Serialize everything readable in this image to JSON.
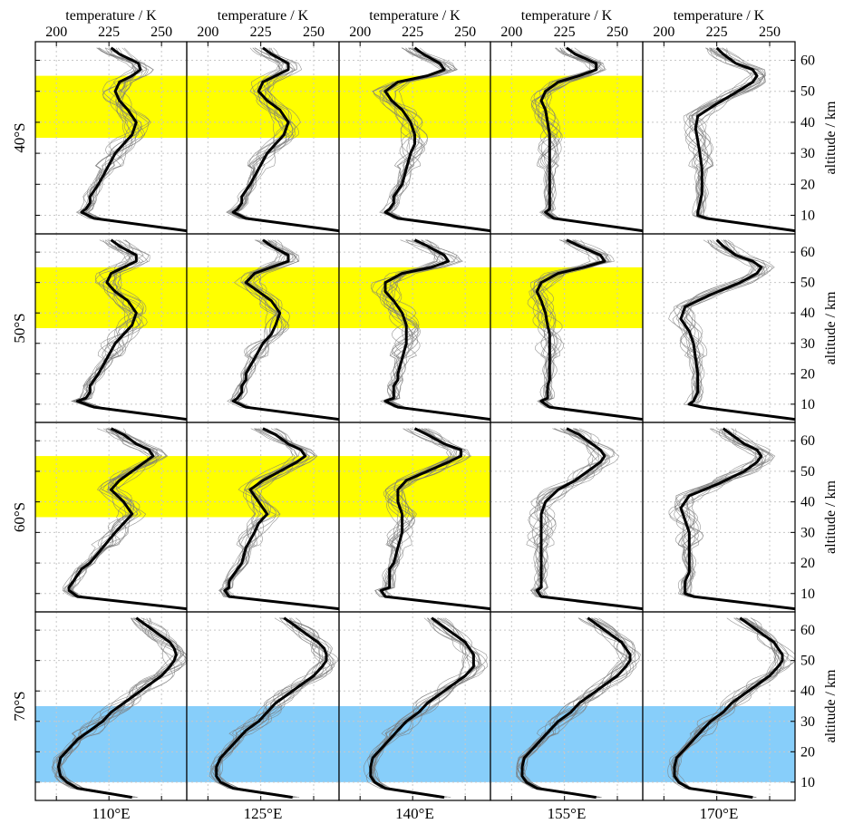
{
  "chart_data": {
    "type": "line",
    "columns": [
      {
        "top_label": "temperature / K",
        "bottom_label": "110°E"
      },
      {
        "top_label": "temperature / K",
        "bottom_label": "125°E"
      },
      {
        "top_label": "temperature / K",
        "bottom_label": "140°E"
      },
      {
        "top_label": "temperature / K",
        "bottom_label": "155°E"
      },
      {
        "top_label": "temperature / K",
        "bottom_label": "170°E"
      }
    ],
    "rows": [
      {
        "label": "40°S",
        "right_axis_label": "altitude / km"
      },
      {
        "label": "50°S",
        "right_axis_label": "altitude / km"
      },
      {
        "label": "60°S",
        "right_axis_label": "altitude / km"
      },
      {
        "label": "70°S",
        "right_axis_label": "altitude / km"
      }
    ],
    "xticks": [
      "200",
      "225",
      "250"
    ],
    "xtick_values": [
      200,
      225,
      250
    ],
    "xlim": [
      190,
      262
    ],
    "yticks": [
      "10",
      "20",
      "30",
      "40",
      "50",
      "60"
    ],
    "ytick_values": [
      10,
      20,
      30,
      40,
      50,
      60
    ],
    "ylim": [
      4,
      66
    ],
    "grid": true,
    "highlight_colors": {
      "yellow": "#ffff00",
      "blue": "#87cefa"
    },
    "highlights": [
      {
        "row": 0,
        "col": 0,
        "color": "yellow",
        "alt_range": [
          35,
          55
        ]
      },
      {
        "row": 0,
        "col": 1,
        "color": "yellow",
        "alt_range": [
          35,
          55
        ]
      },
      {
        "row": 0,
        "col": 2,
        "color": "yellow",
        "alt_range": [
          35,
          55
        ]
      },
      {
        "row": 0,
        "col": 3,
        "color": "yellow",
        "alt_range": [
          35,
          55
        ]
      },
      {
        "row": 1,
        "col": 0,
        "color": "yellow",
        "alt_range": [
          35,
          55
        ]
      },
      {
        "row": 1,
        "col": 1,
        "color": "yellow",
        "alt_range": [
          35,
          55
        ]
      },
      {
        "row": 1,
        "col": 2,
        "color": "yellow",
        "alt_range": [
          35,
          55
        ]
      },
      {
        "row": 1,
        "col": 3,
        "color": "yellow",
        "alt_range": [
          35,
          55
        ]
      },
      {
        "row": 2,
        "col": 0,
        "color": "yellow",
        "alt_range": [
          35,
          55
        ]
      },
      {
        "row": 2,
        "col": 1,
        "color": "yellow",
        "alt_range": [
          35,
          55
        ]
      },
      {
        "row": 2,
        "col": 2,
        "color": "yellow",
        "alt_range": [
          35,
          55
        ]
      },
      {
        "row": 3,
        "col": 0,
        "color": "blue",
        "alt_range": [
          10,
          35
        ]
      },
      {
        "row": 3,
        "col": 1,
        "color": "blue",
        "alt_range": [
          10,
          35
        ]
      },
      {
        "row": 3,
        "col": 2,
        "color": "blue",
        "alt_range": [
          10,
          35
        ]
      },
      {
        "row": 3,
        "col": 3,
        "color": "blue",
        "alt_range": [
          10,
          35
        ]
      },
      {
        "row": 3,
        "col": 4,
        "color": "blue",
        "alt_range": [
          10,
          35
        ]
      }
    ],
    "mean_profiles": [
      [
        {
          "alt": [
            5,
            9,
            11,
            12,
            14,
            16,
            18,
            20,
            25,
            30,
            33,
            36,
            40,
            44,
            47,
            50,
            53,
            55,
            57,
            59,
            62,
            64
          ],
          "temp": [
            262,
            218,
            212,
            214,
            216,
            216,
            218,
            220,
            224,
            228,
            232,
            236,
            238,
            234,
            230,
            228,
            230,
            236,
            240,
            239,
            230,
            226
          ]
        },
        {
          "alt": [
            5,
            9,
            11,
            12,
            14,
            16,
            18,
            20,
            25,
            30,
            33,
            36,
            40,
            44,
            47,
            50,
            53,
            55,
            57,
            59,
            62,
            64
          ],
          "temp": [
            262,
            218,
            212,
            214,
            216,
            216,
            218,
            220,
            224,
            228,
            232,
            236,
            238,
            234,
            228,
            224,
            226,
            232,
            238,
            238,
            230,
            226
          ]
        },
        {
          "alt": [
            5,
            9,
            11,
            12,
            14,
            16,
            18,
            20,
            25,
            30,
            33,
            36,
            40,
            44,
            47,
            50,
            53,
            55,
            57,
            59,
            62,
            64
          ],
          "temp": [
            262,
            218,
            212,
            214,
            216,
            216,
            218,
            220,
            222,
            224,
            226,
            226,
            224,
            220,
            215,
            212,
            218,
            232,
            240,
            238,
            230,
            226
          ]
        },
        {
          "alt": [
            5,
            9,
            11,
            12,
            14,
            16,
            18,
            20,
            25,
            30,
            33,
            36,
            40,
            44,
            47,
            50,
            53,
            55,
            57,
            59,
            62,
            64
          ],
          "temp": [
            262,
            220,
            216,
            218,
            218,
            218,
            218,
            218,
            218,
            218,
            218,
            218,
            217,
            216,
            214,
            216,
            222,
            232,
            240,
            240,
            230,
            226
          ]
        },
        {
          "alt": [
            5,
            9,
            10,
            11,
            14,
            17,
            20,
            25,
            30,
            34,
            38,
            42,
            46,
            50,
            53,
            55,
            57,
            59,
            62,
            64
          ],
          "temp": [
            262,
            220,
            216,
            216,
            217,
            218,
            218,
            218,
            217,
            216,
            215,
            216,
            225,
            235,
            242,
            244,
            242,
            234,
            228,
            225
          ]
        }
      ],
      [
        {
          "alt": [
            5,
            9,
            11,
            12,
            14,
            16,
            18,
            20,
            25,
            30,
            33,
            36,
            40,
            44,
            47,
            50,
            53,
            55,
            57,
            59,
            62,
            64
          ],
          "temp": [
            262,
            218,
            210,
            214,
            216,
            216,
            218,
            220,
            224,
            228,
            232,
            236,
            238,
            234,
            228,
            224,
            226,
            232,
            238,
            238,
            230,
            226
          ]
        },
        {
          "alt": [
            5,
            9,
            11,
            12,
            14,
            16,
            18,
            20,
            25,
            30,
            33,
            36,
            40,
            44,
            47,
            50,
            53,
            55,
            57,
            59,
            62,
            64
          ],
          "temp": [
            262,
            218,
            212,
            214,
            216,
            216,
            218,
            218,
            222,
            226,
            230,
            232,
            234,
            230,
            224,
            218,
            222,
            230,
            238,
            238,
            230,
            226
          ]
        },
        {
          "alt": [
            5,
            9,
            11,
            12,
            14,
            16,
            18,
            20,
            25,
            30,
            33,
            36,
            40,
            44,
            47,
            50,
            53,
            55,
            57,
            59,
            62,
            64
          ],
          "temp": [
            262,
            218,
            212,
            216,
            216,
            216,
            218,
            218,
            220,
            222,
            222,
            222,
            220,
            216,
            212,
            212,
            220,
            234,
            242,
            240,
            232,
            226
          ]
        },
        {
          "alt": [
            5,
            9,
            11,
            12,
            14,
            16,
            18,
            20,
            25,
            30,
            33,
            36,
            40,
            44,
            47,
            50,
            53,
            55,
            57,
            59,
            62,
            64
          ],
          "temp": [
            262,
            218,
            214,
            217,
            217,
            217,
            218,
            218,
            218,
            218,
            218,
            217,
            216,
            214,
            212,
            214,
            222,
            234,
            244,
            242,
            232,
            226
          ]
        },
        {
          "alt": [
            5,
            9,
            10,
            11,
            14,
            17,
            20,
            25,
            30,
            34,
            38,
            42,
            46,
            50,
            53,
            55,
            57,
            59,
            62,
            64
          ],
          "temp": [
            262,
            218,
            212,
            214,
            216,
            216,
            216,
            215,
            214,
            212,
            208,
            210,
            222,
            236,
            244,
            246,
            242,
            234,
            228,
            225
          ]
        }
      ],
      [
        {
          "alt": [
            5,
            9,
            11,
            12,
            14,
            16,
            18,
            20,
            25,
            30,
            33,
            36,
            40,
            44,
            47,
            50,
            53,
            55,
            57,
            59,
            62,
            64
          ],
          "temp": [
            262,
            210,
            206,
            206,
            208,
            210,
            212,
            216,
            222,
            228,
            232,
            236,
            232,
            226,
            230,
            236,
            242,
            246,
            244,
            238,
            232,
            226
          ]
        },
        {
          "alt": [
            5,
            9,
            11,
            12,
            14,
            16,
            18,
            20,
            25,
            30,
            33,
            36,
            40,
            44,
            47,
            50,
            53,
            55,
            57,
            59,
            62,
            64
          ],
          "temp": [
            262,
            210,
            208,
            210,
            210,
            212,
            214,
            216,
            218,
            222,
            224,
            228,
            224,
            220,
            226,
            234,
            242,
            246,
            244,
            238,
            232,
            226
          ]
        },
        {
          "alt": [
            5,
            9,
            11,
            12,
            14,
            16,
            18,
            20,
            25,
            30,
            33,
            36,
            40,
            44,
            47,
            50,
            53,
            55,
            57,
            59,
            62,
            64
          ],
          "temp": [
            262,
            212,
            210,
            214,
            214,
            214,
            214,
            216,
            218,
            220,
            220,
            220,
            218,
            218,
            222,
            232,
            242,
            248,
            248,
            240,
            232,
            226
          ]
        },
        {
          "alt": [
            5,
            9,
            11,
            12,
            14,
            16,
            18,
            20,
            25,
            30,
            33,
            36,
            40,
            44,
            47,
            50,
            53,
            55,
            57,
            59,
            62,
            64
          ],
          "temp": [
            262,
            214,
            212,
            214,
            214,
            214,
            214,
            214,
            214,
            214,
            214,
            214,
            216,
            222,
            230,
            236,
            242,
            244,
            242,
            238,
            232,
            226
          ]
        },
        {
          "alt": [
            5,
            9,
            10,
            11,
            14,
            17,
            20,
            25,
            30,
            34,
            38,
            42,
            46,
            50,
            53,
            55,
            57,
            59,
            62,
            64
          ],
          "temp": [
            262,
            214,
            210,
            210,
            210,
            212,
            212,
            212,
            212,
            210,
            208,
            212,
            226,
            238,
            244,
            246,
            244,
            238,
            232,
            228
          ]
        }
      ],
      [
        {
          "alt": [
            5,
            8,
            10,
            12,
            15,
            18,
            21,
            24,
            27,
            30,
            33,
            36,
            39,
            42,
            45,
            48,
            50,
            52,
            54,
            56,
            58,
            60,
            62,
            64
          ],
          "temp": [
            236,
            210,
            205,
            202,
            201,
            202,
            206,
            210,
            216,
            222,
            226,
            232,
            238,
            244,
            250,
            254,
            256,
            257,
            256,
            254,
            250,
            246,
            242,
            238
          ]
        },
        {
          "alt": [
            5,
            8,
            10,
            12,
            15,
            18,
            21,
            24,
            27,
            30,
            33,
            36,
            39,
            42,
            45,
            48,
            50,
            52,
            54,
            56,
            58,
            60,
            62,
            64
          ],
          "temp": [
            240,
            212,
            206,
            204,
            204,
            206,
            210,
            214,
            218,
            224,
            228,
            232,
            238,
            244,
            250,
            254,
            256,
            256,
            255,
            252,
            248,
            244,
            240,
            236
          ]
        },
        {
          "alt": [
            5,
            8,
            10,
            12,
            15,
            18,
            21,
            24,
            27,
            30,
            33,
            36,
            39,
            42,
            45,
            48,
            50,
            52,
            54,
            56,
            58,
            60,
            62,
            64
          ],
          "temp": [
            240,
            212,
            207,
            205,
            205,
            206,
            210,
            214,
            218,
            222,
            228,
            232,
            238,
            244,
            250,
            254,
            254,
            254,
            252,
            250,
            246,
            242,
            238,
            234
          ]
        },
        {
          "alt": [
            5,
            8,
            10,
            12,
            15,
            18,
            21,
            24,
            27,
            30,
            33,
            36,
            39,
            42,
            45,
            48,
            50,
            52,
            54,
            56,
            58,
            60,
            62,
            64
          ],
          "temp": [
            240,
            212,
            207,
            205,
            205,
            206,
            210,
            214,
            218,
            222,
            228,
            232,
            238,
            244,
            250,
            254,
            256,
            256,
            254,
            252,
            248,
            244,
            240,
            236
          ]
        },
        {
          "alt": [
            5,
            8,
            10,
            12,
            15,
            18,
            21,
            24,
            27,
            30,
            33,
            36,
            39,
            42,
            45,
            48,
            50,
            52,
            54,
            56,
            58,
            60,
            62,
            64
          ],
          "temp": [
            242,
            212,
            207,
            205,
            205,
            206,
            210,
            214,
            218,
            222,
            228,
            232,
            238,
            244,
            250,
            254,
            256,
            256,
            254,
            252,
            248,
            244,
            240,
            236
          ]
        }
      ]
    ]
  }
}
